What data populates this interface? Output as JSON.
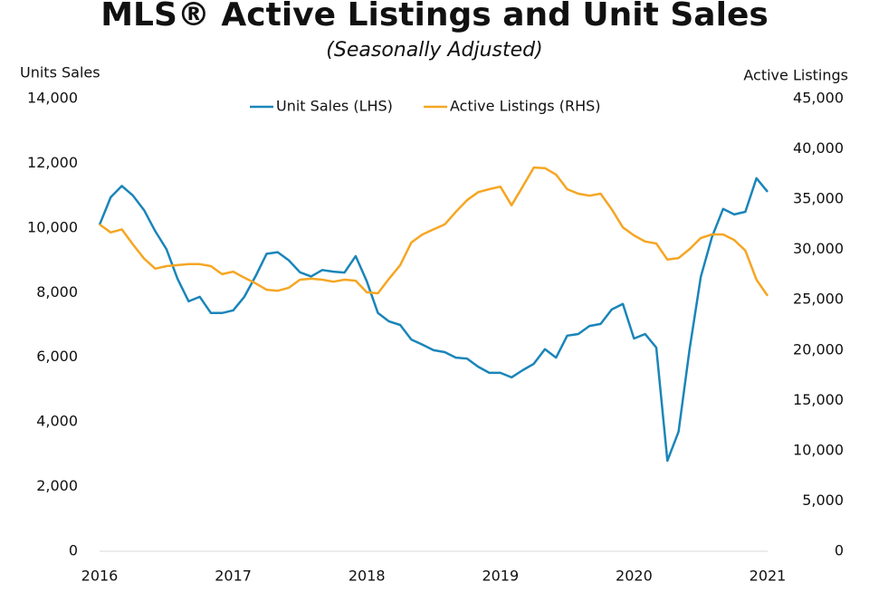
{
  "chart_data": {
    "type": "line",
    "title": "MLS® Active Listings and Unit Sales",
    "subtitle": "(Seasonally Adjusted)",
    "y_label": "Units Sales",
    "y2_label": "Active Listings",
    "x": [
      2016,
      2016.083,
      2016.167,
      2016.25,
      2016.333,
      2016.417,
      2016.5,
      2016.583,
      2016.667,
      2016.75,
      2016.833,
      2016.917,
      2017,
      2017.083,
      2017.167,
      2017.25,
      2017.333,
      2017.417,
      2017.5,
      2017.583,
      2017.667,
      2017.75,
      2017.833,
      2017.917,
      2018,
      2018.083,
      2018.167,
      2018.25,
      2018.333,
      2018.417,
      2018.5,
      2018.583,
      2018.667,
      2018.75,
      2018.833,
      2018.917,
      2019,
      2019.083,
      2019.167,
      2019.25,
      2019.333,
      2019.417,
      2019.5,
      2019.583,
      2019.667,
      2019.75,
      2019.833,
      2019.917,
      2020,
      2020.083,
      2020.167,
      2020.25,
      2020.333,
      2020.417,
      2020.5,
      2020.583,
      2020.667,
      2020.75,
      2020.833,
      2020.917,
      2021
    ],
    "series": [
      {
        "name": "Unit Sales (LHS)",
        "color": "#1a85b9",
        "axis": "y",
        "values": [
          10100,
          10950,
          11300,
          11000,
          10550,
          9900,
          9350,
          8430,
          7730,
          7870,
          7370,
          7370,
          7450,
          7870,
          8500,
          9200,
          9250,
          9000,
          8630,
          8500,
          8700,
          8650,
          8620,
          9130,
          8350,
          7370,
          7110,
          7000,
          6550,
          6390,
          6220,
          6160,
          5990,
          5960,
          5710,
          5520,
          5520,
          5380,
          5600,
          5800,
          6250,
          5990,
          6670,
          6720,
          6970,
          7030,
          7480,
          7650,
          6580,
          6720,
          6300,
          2800,
          3700,
          6270,
          8490,
          9720,
          10590,
          10420,
          10500,
          11540,
          11120
        ]
      },
      {
        "name": "Active Listings (RHS)",
        "color": "#f5a623",
        "axis": "y2",
        "values": [
          32500,
          31700,
          32000,
          30500,
          29100,
          28100,
          28350,
          28450,
          28550,
          28550,
          28350,
          27550,
          27800,
          27200,
          26650,
          26000,
          25900,
          26200,
          27000,
          27100,
          27000,
          26800,
          27000,
          26900,
          25750,
          25650,
          27100,
          28450,
          30700,
          31500,
          32000,
          32500,
          33750,
          34900,
          35700,
          36000,
          36250,
          34400,
          36250,
          38150,
          38100,
          37450,
          36000,
          35550,
          35350,
          35550,
          34000,
          32200,
          31400,
          30800,
          30600,
          29000,
          29150,
          30050,
          31150,
          31500,
          31500,
          30950,
          29900,
          27000,
          25400
        ]
      }
    ],
    "xlim": [
      2016,
      2021
    ],
    "xticks": [
      2016,
      2017,
      2018,
      2019,
      2020,
      2021
    ],
    "ylim": [
      0,
      14000
    ],
    "yticks": [
      0,
      {
        "value": 2000,
        "label": "2,000"
      },
      {
        "value": 4000,
        "label": "4,000"
      },
      {
        "value": 6000,
        "label": "6,000"
      },
      {
        "value": 8000,
        "label": "8,000"
      },
      {
        "value": 10000,
        "label": "10,000"
      },
      {
        "value": 12000,
        "label": "12,000"
      },
      {
        "value": 14000,
        "label": "14,000"
      }
    ],
    "y2lim": [
      0,
      45000
    ],
    "y2ticks": [
      0,
      {
        "value": 5000,
        "label": "5,000"
      },
      {
        "value": 10000,
        "label": "10,000"
      },
      {
        "value": 15000,
        "label": "15,000"
      },
      {
        "value": 20000,
        "label": "20,000"
      },
      {
        "value": 25000,
        "label": "25,000"
      },
      {
        "value": 30000,
        "label": "30,000"
      },
      {
        "value": 35000,
        "label": "35,000"
      },
      {
        "value": 40000,
        "label": "40,000"
      },
      {
        "value": 45000,
        "label": "45,000"
      }
    ],
    "grid": false,
    "legend": "top"
  }
}
